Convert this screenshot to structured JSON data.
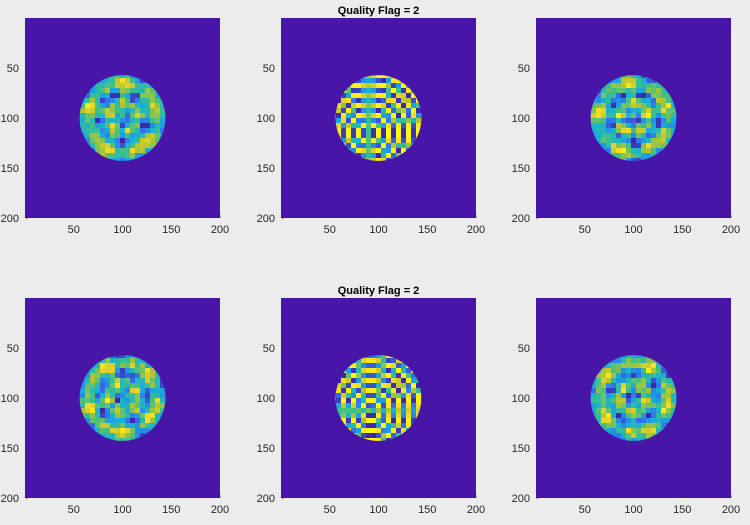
{
  "colors": {
    "background": "#ececec",
    "plot_bg": "#4715a8",
    "axis": "#262626",
    "colormap": [
      "#3e26a8",
      "#2e7af0",
      "#16b1d6",
      "#3fc185",
      "#b7c52f",
      "#fbdd26",
      "#f9fb0e"
    ]
  },
  "chart_data": [
    {
      "type": "heatmap",
      "title": "",
      "pattern": "ring-noise",
      "seed": 11,
      "center": [
        100,
        100
      ],
      "radius": 44,
      "xticks": [
        50,
        100,
        150,
        200
      ],
      "yticks": [
        50,
        100,
        150,
        200
      ],
      "xlim": [
        0,
        200
      ],
      "ylim": [
        0,
        200
      ]
    },
    {
      "type": "heatmap",
      "title": "Quality Flag = 2",
      "pattern": "fringes",
      "seed": 5,
      "center": [
        100,
        100
      ],
      "radius": 44,
      "fringe_center": [
        90,
        115
      ],
      "xticks": [
        50,
        100,
        150,
        200
      ],
      "yticks": [
        50,
        100,
        150,
        200
      ],
      "xlim": [
        0,
        200
      ],
      "ylim": [
        0,
        200
      ]
    },
    {
      "type": "heatmap",
      "title": "",
      "pattern": "ring-noise",
      "seed": 23,
      "center": [
        100,
        100
      ],
      "radius": 44,
      "xticks": [
        50,
        100,
        150,
        200
      ],
      "yticks": [
        50,
        100,
        150,
        200
      ],
      "xlim": [
        0,
        200
      ],
      "ylim": [
        0,
        200
      ]
    },
    {
      "type": "heatmap",
      "title": "",
      "pattern": "ring-noise",
      "seed": 37,
      "center": [
        100,
        100
      ],
      "radius": 44,
      "xticks": [
        50,
        100,
        150,
        200
      ],
      "yticks": [
        50,
        100,
        150,
        200
      ],
      "xlim": [
        0,
        200
      ],
      "ylim": [
        0,
        200
      ]
    },
    {
      "type": "heatmap",
      "title": "Quality Flag = 2",
      "pattern": "fringes",
      "seed": 9,
      "center": [
        100,
        100
      ],
      "radius": 44,
      "fringe_center": [
        92,
        113
      ],
      "xticks": [
        50,
        100,
        150,
        200
      ],
      "yticks": [
        50,
        100,
        150,
        200
      ],
      "xlim": [
        0,
        200
      ],
      "ylim": [
        0,
        200
      ]
    },
    {
      "type": "heatmap",
      "title": "",
      "pattern": "ring-noise",
      "seed": 51,
      "center": [
        100,
        100
      ],
      "radius": 44,
      "xticks": [
        50,
        100,
        150,
        200
      ],
      "yticks": [
        50,
        100,
        150,
        200
      ],
      "xlim": [
        0,
        200
      ],
      "ylim": [
        0,
        200
      ]
    }
  ]
}
